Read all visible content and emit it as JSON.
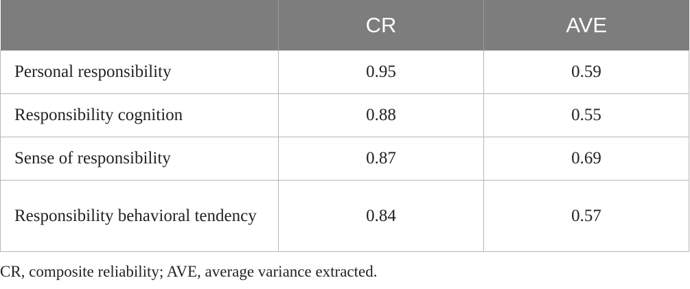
{
  "table": {
    "headers": [
      "",
      "CR",
      "AVE"
    ],
    "rows": [
      {
        "label": "Personal responsibility",
        "cr": "0.95",
        "ave": "0.59"
      },
      {
        "label": "Responsibility cognition",
        "cr": "0.88",
        "ave": "0.55"
      },
      {
        "label": "Sense of responsibility",
        "cr": "0.87",
        "ave": "0.69"
      },
      {
        "label": "Responsibility behavioral tendency",
        "cr": "0.84",
        "ave": "0.57"
      }
    ]
  },
  "footnote": "CR, composite reliability; AVE, average variance extracted."
}
